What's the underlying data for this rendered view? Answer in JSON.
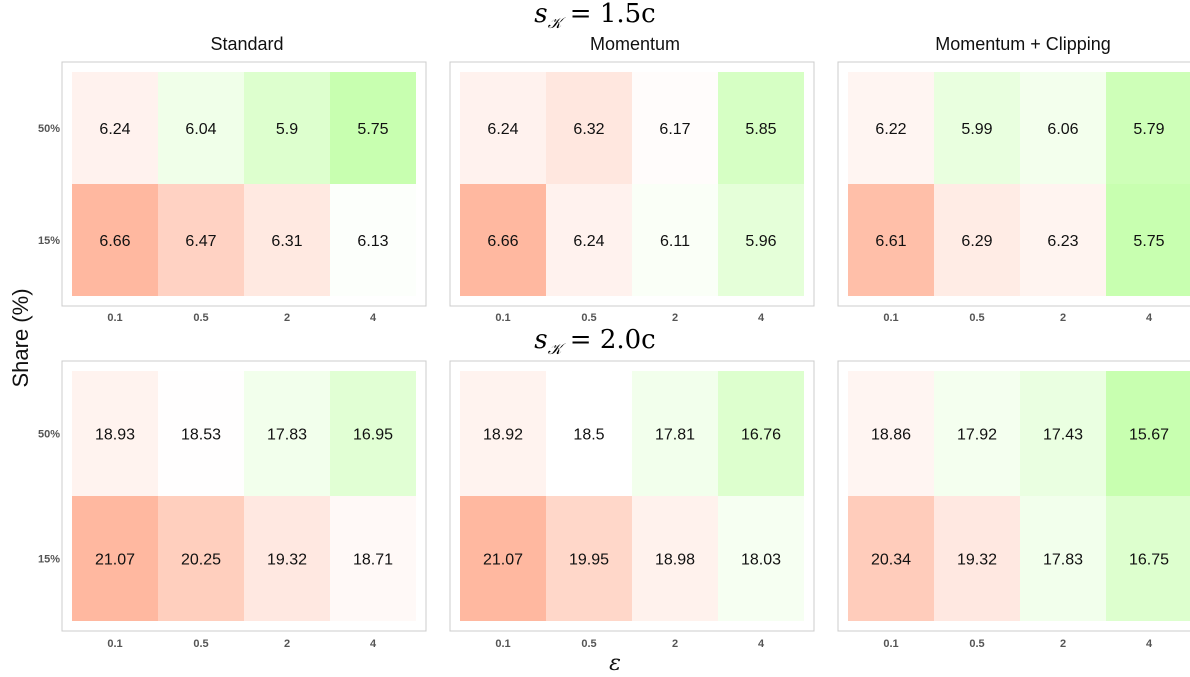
{
  "figure": {
    "ylabel": "Share (%)",
    "xlabel": "ε",
    "facet_titles": [
      "Standard",
      "Momentum",
      "Momentum + Clipping"
    ]
  },
  "chart_data": [
    {
      "type": "heatmap",
      "row_title": "s_K = 1.5c",
      "row_title_parts": {
        "lhs": "s",
        "sub": "𝒦",
        "rhs": " = 1.5c"
      },
      "x_categories": [
        "0.1",
        "0.5",
        "2",
        "4"
      ],
      "y_categories": [
        "50%",
        "15%"
      ],
      "panels": [
        {
          "title": "Standard",
          "values": {
            "50%": [
              6.24,
              6.04,
              5.9,
              5.75
            ],
            "15%": [
              6.66,
              6.47,
              6.31,
              6.13
            ]
          }
        },
        {
          "title": "Momentum",
          "values": {
            "50%": [
              6.24,
              6.32,
              6.17,
              5.85
            ],
            "15%": [
              6.66,
              6.24,
              6.11,
              5.96
            ]
          }
        },
        {
          "title": "Momentum + Clipping",
          "values": {
            "50%": [
              6.22,
              5.99,
              6.06,
              5.79
            ],
            "15%": [
              6.61,
              6.29,
              6.23,
              5.75
            ]
          }
        }
      ],
      "color_midpoint": 6.15,
      "color_low": "#c8ffb0",
      "color_mid": "#ffffff",
      "color_high": "#ffb8a0"
    },
    {
      "type": "heatmap",
      "row_title": "s_K = 2.0c",
      "row_title_parts": {
        "lhs": "s",
        "sub": "𝒦",
        "rhs": " = 2.0c"
      },
      "x_categories": [
        "0.1",
        "0.5",
        "2",
        "4"
      ],
      "y_categories": [
        "50%",
        "15%"
      ],
      "panels": [
        {
          "title": "Standard",
          "values": {
            "50%": [
              18.93,
              18.53,
              17.83,
              16.95
            ],
            "15%": [
              21.07,
              20.25,
              19.32,
              18.71
            ]
          }
        },
        {
          "title": "Momentum",
          "values": {
            "50%": [
              18.92,
              18.5,
              17.81,
              16.76
            ],
            "15%": [
              21.07,
              19.95,
              18.98,
              18.03
            ]
          }
        },
        {
          "title": "Momentum + Clipping",
          "values": {
            "50%": [
              18.86,
              17.92,
              17.43,
              15.67
            ],
            "15%": [
              20.34,
              19.32,
              17.83,
              16.75
            ]
          }
        }
      ],
      "color_midpoint": 18.5,
      "color_low": "#c8ffb0",
      "color_mid": "#ffffff",
      "color_high": "#ffb8a0"
    }
  ]
}
